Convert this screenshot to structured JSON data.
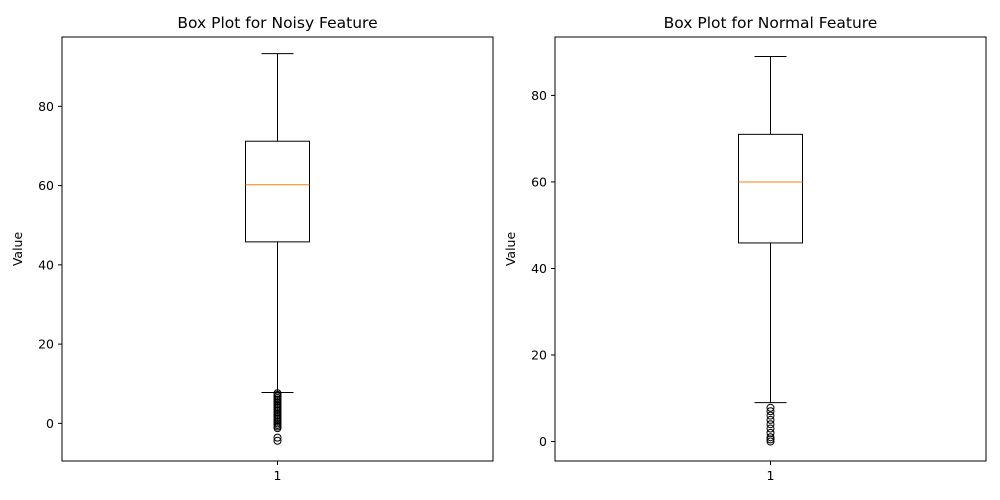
{
  "chart_data": [
    {
      "type": "box",
      "title": "Box Plot for Noisy Feature",
      "xlabel": "",
      "ylabel": "Value",
      "ylim": [
        -9.5,
        97.5
      ],
      "yticks": [
        0,
        20,
        40,
        60,
        80
      ],
      "categories": [
        "1"
      ],
      "box": {
        "whisker_low": 7.8,
        "q1": 45.8,
        "median": 60.2,
        "q3": 71.2,
        "whisker_high": 93.3
      },
      "outliers": [
        7.6,
        7.2,
        6.8,
        6.4,
        6.0,
        5.6,
        5.2,
        4.8,
        4.4,
        4.0,
        3.6,
        3.2,
        2.8,
        2.4,
        2.0,
        1.6,
        1.2,
        0.8,
        0.4,
        0.0,
        -0.4,
        -0.8,
        -1.2,
        -3.6,
        -4.4
      ],
      "colors": {
        "box": "#000000",
        "median": "#ff7f0e"
      },
      "grid": false
    },
    {
      "type": "box",
      "title": "Box Plot for Normal Feature",
      "xlabel": "",
      "ylabel": "Value",
      "ylim": [
        -4.5,
        93.5
      ],
      "yticks": [
        0,
        20,
        40,
        60,
        80
      ],
      "categories": [
        "1"
      ],
      "box": {
        "whisker_low": 9.0,
        "q1": 45.9,
        "median": 60.0,
        "q3": 71.0,
        "whisker_high": 89.0
      },
      "outliers": [
        7.8,
        7.0,
        6.0,
        5.0,
        4.0,
        3.0,
        2.0,
        1.0,
        0.5,
        0.0
      ],
      "colors": {
        "box": "#000000",
        "median": "#ff7f0e"
      },
      "grid": false
    }
  ]
}
